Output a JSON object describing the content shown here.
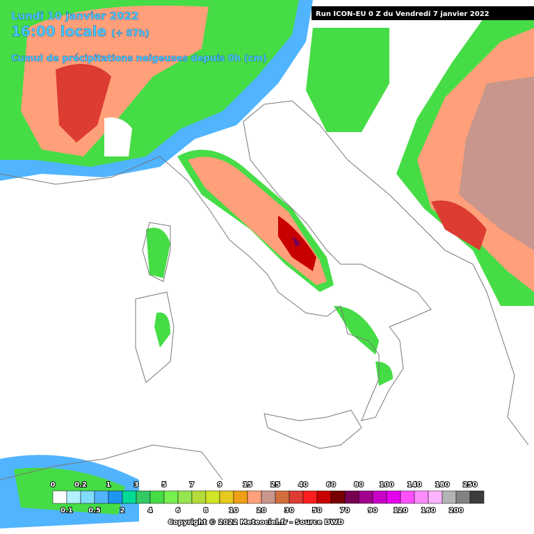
{
  "header": {
    "date": "Lundi 10 janvier 2022",
    "time": "16:00 locale",
    "lead": "(+ 87h)",
    "subtitle": "Cumul de précipitations neigeuses depuis 0h (cm)",
    "run": "Run ICON-EU 0 Z du Vendredi 7 janvier 2022"
  },
  "legend": [
    {
      "label": 0,
      "color": "#ffffff"
    },
    {
      "label": 0.1,
      "color": "#b4f0ff"
    },
    {
      "label": 0.2,
      "color": "#82dcff"
    },
    {
      "label": 0.5,
      "color": "#50b4ff"
    },
    {
      "label": 1,
      "color": "#1e96f0"
    },
    {
      "label": 2,
      "color": "#00dc96"
    },
    {
      "label": 3,
      "color": "#32c864"
    },
    {
      "label": 4,
      "color": "#46dc46"
    },
    {
      "label": 5,
      "color": "#78f050"
    },
    {
      "label": 6,
      "color": "#96e650"
    },
    {
      "label": 7,
      "color": "#b4dc3c"
    },
    {
      "label": 8,
      "color": "#d2e628"
    },
    {
      "label": 9,
      "color": "#e6c81e"
    },
    {
      "label": 10,
      "color": "#f0a014"
    },
    {
      "label": 15,
      "color": "#ffa07a"
    },
    {
      "label": 20,
      "color": "#c8968c"
    },
    {
      "label": 25,
      "color": "#d26e3c"
    },
    {
      "label": 30,
      "color": "#dc3c32"
    },
    {
      "label": 40,
      "color": "#ff1e1e"
    },
    {
      "label": 50,
      "color": "#c80000"
    },
    {
      "label": 60,
      "color": "#780000"
    },
    {
      "label": 70,
      "color": "#780050"
    },
    {
      "label": 80,
      "color": "#a0008c"
    },
    {
      "label": 90,
      "color": "#c800c8"
    },
    {
      "label": 100,
      "color": "#e600f0"
    },
    {
      "label": 120,
      "color": "#ff50ff"
    },
    {
      "label": 140,
      "color": "#ff8cff"
    },
    {
      "label": 160,
      "color": "#ffb4ff"
    },
    {
      "label": 180,
      "color": "#b4b4b4"
    },
    {
      "label": 200,
      "color": "#828282"
    },
    {
      "label": 250,
      "color": "#3c3c3c"
    }
  ],
  "footer": {
    "copyright": "Copyright © 2022 Meteociel.fr - Source DWD"
  }
}
